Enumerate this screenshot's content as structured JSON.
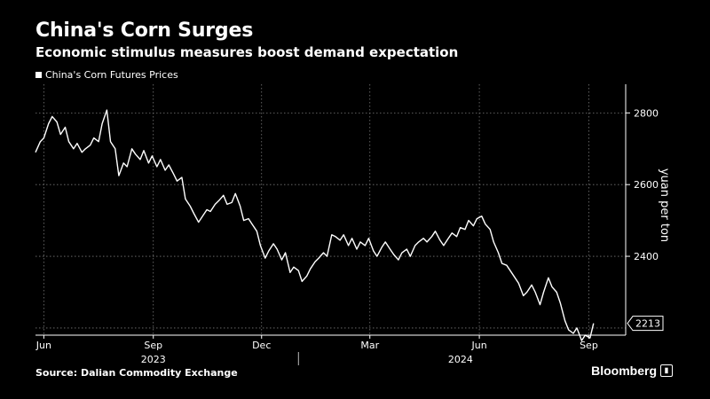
{
  "header": {
    "title": "China's Corn Surges",
    "subtitle": "Economic stimulus measures boost demand expectation"
  },
  "legend": {
    "label": "China's Corn Futures Prices"
  },
  "footer": {
    "source": "Source: Dalian Commodity Exchange",
    "brand": "Bloomberg"
  },
  "colors": {
    "background": "#000000",
    "line": "#ffffff",
    "grid": "#777777"
  },
  "chart_data": {
    "type": "line",
    "title": "China's Corn Surges",
    "subtitle": "Economic stimulus measures boost demand expectation",
    "xlabel": "",
    "ylabel": "yuan per ton",
    "ylim": [
      2180,
      2880
    ],
    "yticks": [
      2800,
      2600,
      2400
    ],
    "xtick_labels": [
      "Jun",
      "Sep",
      "Dec",
      "Mar",
      "Jun",
      "Sep"
    ],
    "xtick_dates": [
      "2023-06-01",
      "2023-09-01",
      "2023-12-01",
      "2024-03-01",
      "2024-06-01",
      "2024-09-01"
    ],
    "year_labels": [
      "2023",
      "2024"
    ],
    "xlim": [
      "2023-05-25",
      "2024-10-02"
    ],
    "grid": true,
    "legend_position": "top-left",
    "last_value_label": "2213",
    "series": [
      {
        "name": "China's Corn Futures Prices",
        "points": [
          [
            "2023-05-25",
            2690
          ],
          [
            "2023-05-29",
            2720
          ],
          [
            "2023-06-01",
            2730
          ],
          [
            "2023-06-05",
            2770
          ],
          [
            "2023-06-08",
            2790
          ],
          [
            "2023-06-12",
            2775
          ],
          [
            "2023-06-15",
            2740
          ],
          [
            "2023-06-19",
            2760
          ],
          [
            "2023-06-22",
            2720
          ],
          [
            "2023-06-26",
            2700
          ],
          [
            "2023-06-29",
            2715
          ],
          [
            "2023-07-03",
            2690
          ],
          [
            "2023-07-06",
            2700
          ],
          [
            "2023-07-10",
            2710
          ],
          [
            "2023-07-13",
            2730
          ],
          [
            "2023-07-17",
            2720
          ],
          [
            "2023-07-20",
            2770
          ],
          [
            "2023-07-24",
            2808
          ],
          [
            "2023-07-27",
            2720
          ],
          [
            "2023-07-31",
            2700
          ],
          [
            "2023-08-03",
            2625
          ],
          [
            "2023-08-07",
            2660
          ],
          [
            "2023-08-10",
            2650
          ],
          [
            "2023-08-14",
            2700
          ],
          [
            "2023-08-17",
            2685
          ],
          [
            "2023-08-21",
            2670
          ],
          [
            "2023-08-24",
            2695
          ],
          [
            "2023-08-28",
            2660
          ],
          [
            "2023-08-31",
            2680
          ],
          [
            "2023-09-04",
            2650
          ],
          [
            "2023-09-07",
            2670
          ],
          [
            "2023-09-11",
            2640
          ],
          [
            "2023-09-14",
            2655
          ],
          [
            "2023-09-18",
            2630
          ],
          [
            "2023-09-21",
            2610
          ],
          [
            "2023-09-25",
            2620
          ],
          [
            "2023-09-28",
            2560
          ],
          [
            "2023-10-02",
            2540
          ],
          [
            "2023-10-05",
            2520
          ],
          [
            "2023-10-09",
            2495
          ],
          [
            "2023-10-12",
            2510
          ],
          [
            "2023-10-16",
            2530
          ],
          [
            "2023-10-19",
            2525
          ],
          [
            "2023-10-23",
            2545
          ],
          [
            "2023-10-26",
            2555
          ],
          [
            "2023-10-30",
            2570
          ],
          [
            "2023-11-02",
            2545
          ],
          [
            "2023-11-06",
            2550
          ],
          [
            "2023-11-09",
            2575
          ],
          [
            "2023-11-13",
            2540
          ],
          [
            "2023-11-16",
            2500
          ],
          [
            "2023-11-20",
            2505
          ],
          [
            "2023-11-23",
            2490
          ],
          [
            "2023-11-27",
            2470
          ],
          [
            "2023-11-30",
            2430
          ],
          [
            "2023-12-04",
            2395
          ],
          [
            "2023-12-07",
            2415
          ],
          [
            "2023-12-11",
            2435
          ],
          [
            "2023-12-14",
            2420
          ],
          [
            "2023-12-18",
            2390
          ],
          [
            "2023-12-21",
            2410
          ],
          [
            "2023-12-25",
            2355
          ],
          [
            "2023-12-28",
            2370
          ],
          [
            "2024-01-01",
            2360
          ],
          [
            "2024-01-04",
            2330
          ],
          [
            "2024-01-08",
            2345
          ],
          [
            "2024-01-11",
            2365
          ],
          [
            "2024-01-15",
            2385
          ],
          [
            "2024-01-18",
            2395
          ],
          [
            "2024-01-22",
            2410
          ],
          [
            "2024-01-25",
            2400
          ],
          [
            "2024-01-29",
            2460
          ],
          [
            "2024-02-01",
            2455
          ],
          [
            "2024-02-05",
            2445
          ],
          [
            "2024-02-08",
            2460
          ],
          [
            "2024-02-12",
            2430
          ],
          [
            "2024-02-15",
            2450
          ],
          [
            "2024-02-19",
            2420
          ],
          [
            "2024-02-22",
            2440
          ],
          [
            "2024-02-26",
            2430
          ],
          [
            "2024-02-29",
            2450
          ],
          [
            "2024-03-04",
            2415
          ],
          [
            "2024-03-07",
            2400
          ],
          [
            "2024-03-11",
            2425
          ],
          [
            "2024-03-14",
            2440
          ],
          [
            "2024-03-18",
            2420
          ],
          [
            "2024-03-21",
            2405
          ],
          [
            "2024-03-25",
            2390
          ],
          [
            "2024-03-28",
            2410
          ],
          [
            "2024-04-01",
            2420
          ],
          [
            "2024-04-04",
            2400
          ],
          [
            "2024-04-08",
            2430
          ],
          [
            "2024-04-11",
            2440
          ],
          [
            "2024-04-15",
            2450
          ],
          [
            "2024-04-18",
            2440
          ],
          [
            "2024-04-22",
            2455
          ],
          [
            "2024-04-25",
            2470
          ],
          [
            "2024-04-29",
            2445
          ],
          [
            "2024-05-02",
            2430
          ],
          [
            "2024-05-06",
            2450
          ],
          [
            "2024-05-09",
            2465
          ],
          [
            "2024-05-13",
            2455
          ],
          [
            "2024-05-16",
            2480
          ],
          [
            "2024-05-20",
            2475
          ],
          [
            "2024-05-23",
            2500
          ],
          [
            "2024-05-27",
            2485
          ],
          [
            "2024-05-30",
            2505
          ],
          [
            "2024-06-03",
            2512
          ],
          [
            "2024-06-06",
            2490
          ],
          [
            "2024-06-10",
            2475
          ],
          [
            "2024-06-13",
            2440
          ],
          [
            "2024-06-17",
            2410
          ],
          [
            "2024-06-20",
            2380
          ],
          [
            "2024-06-24",
            2375
          ],
          [
            "2024-06-27",
            2360
          ],
          [
            "2024-07-01",
            2340
          ],
          [
            "2024-07-04",
            2325
          ],
          [
            "2024-07-08",
            2290
          ],
          [
            "2024-07-11",
            2300
          ],
          [
            "2024-07-15",
            2320
          ],
          [
            "2024-07-18",
            2300
          ],
          [
            "2024-07-22",
            2265
          ],
          [
            "2024-07-25",
            2300
          ],
          [
            "2024-07-29",
            2340
          ],
          [
            "2024-08-01",
            2315
          ],
          [
            "2024-08-05",
            2300
          ],
          [
            "2024-08-08",
            2270
          ],
          [
            "2024-08-12",
            2220
          ],
          [
            "2024-08-15",
            2195
          ],
          [
            "2024-08-19",
            2185
          ],
          [
            "2024-08-22",
            2200
          ],
          [
            "2024-08-26",
            2165
          ],
          [
            "2024-08-29",
            2180
          ],
          [
            "2024-09-02",
            2172
          ],
          [
            "2024-09-05",
            2213
          ]
        ]
      }
    ]
  }
}
